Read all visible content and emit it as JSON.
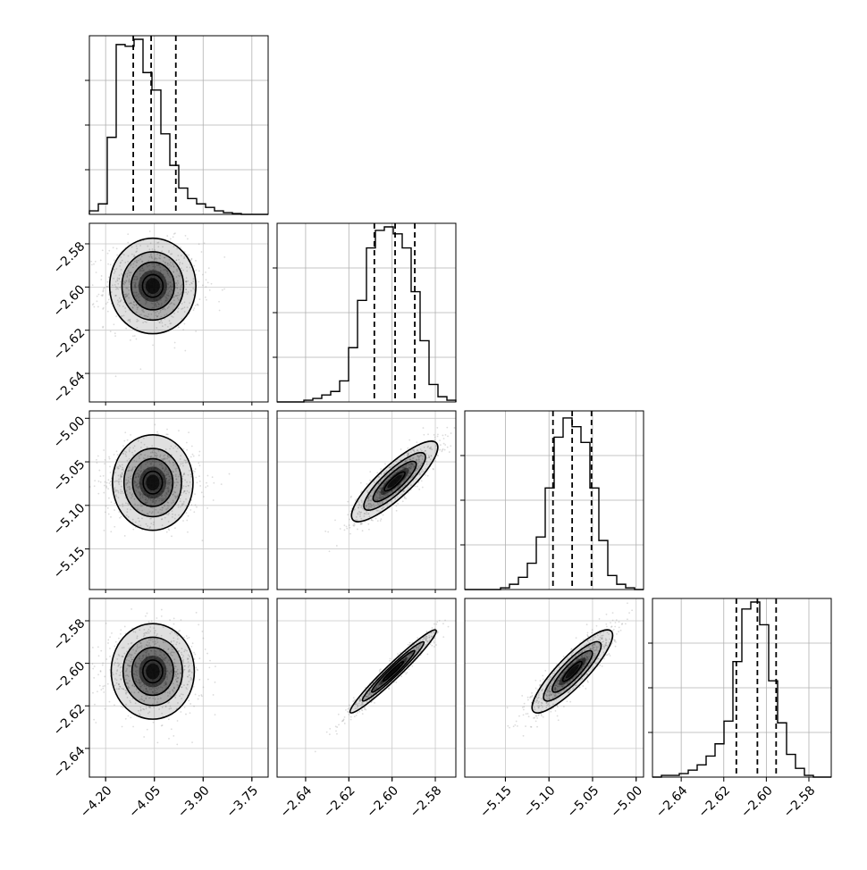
{
  "figure": {
    "type": "corner-plot"
  },
  "tick_labels": {
    "p1": [
      "−4.20",
      "−4.05",
      "−3.90",
      "−3.75"
    ],
    "p2": [
      "−2.64",
      "−2.62",
      "−2.60",
      "−2.58"
    ],
    "p3": [
      "−5.15",
      "−5.10",
      "−5.05",
      "−5.00"
    ],
    "p4": [
      "−2.64",
      "−2.62",
      "−2.60",
      "−2.58"
    ]
  },
  "chart_data": {
    "type": "corner",
    "grid": true,
    "parameters": [
      {
        "tick_values": [
          -4.2,
          -4.05,
          -3.9,
          -3.75
        ],
        "range": [
          -4.25,
          -3.7
        ],
        "quantiles": [
          -4.115,
          -4.06,
          -3.984
        ]
      },
      {
        "tick_values": [
          -2.64,
          -2.62,
          -2.6,
          -2.58
        ],
        "range": [
          -2.6532,
          -2.5705
        ],
        "quantiles": [
          -2.6082,
          -2.5986,
          -2.5895
        ]
      },
      {
        "tick_values": [
          -5.15,
          -5.1,
          -5.05,
          -5.0
        ],
        "range": [
          -5.1966,
          -4.9915
        ],
        "quantiles": [
          -5.0954,
          -5.0734,
          -5.0512
        ]
      },
      {
        "tick_values": [
          -2.64,
          -2.62,
          -2.6,
          -2.58
        ],
        "range": [
          -2.6535,
          -2.5695
        ],
        "quantiles": [
          -2.6141,
          -2.6042,
          -2.5954
        ]
      }
    ],
    "histograms": [
      [
        0.02,
        0.06,
        0.44,
        0.97,
        0.96,
        1.0,
        0.81,
        0.71,
        0.46,
        0.28,
        0.15,
        0.09,
        0.06,
        0.04,
        0.02,
        0.01,
        0.005,
        0.0,
        0.0,
        0.0
      ],
      [
        0.0,
        0.0,
        0.0,
        0.01,
        0.02,
        0.04,
        0.06,
        0.12,
        0.31,
        0.58,
        0.88,
        0.98,
        1.0,
        0.96,
        0.88,
        0.63,
        0.35,
        0.1,
        0.03,
        0.01
      ],
      [
        0.0,
        0.0,
        0.0,
        0.0,
        0.01,
        0.03,
        0.07,
        0.15,
        0.3,
        0.58,
        0.87,
        0.98,
        0.93,
        0.84,
        0.58,
        0.28,
        0.08,
        0.03,
        0.01,
        0.0
      ],
      [
        0.0,
        0.01,
        0.01,
        0.02,
        0.04,
        0.07,
        0.12,
        0.19,
        0.32,
        0.66,
        0.96,
        1.0,
        0.87,
        0.55,
        0.31,
        0.13,
        0.05,
        0.01,
        0.0,
        0.0
      ]
    ],
    "pairs": [
      {
        "x": 0,
        "y": 1,
        "mean": [
          -4.055,
          -2.5995
        ],
        "sd": [
          0.07,
          0.0095
        ],
        "rho": 0.0
      },
      {
        "x": 0,
        "y": 2,
        "mean": [
          -4.055,
          -5.0738
        ],
        "sd": [
          0.07,
          0.022
        ],
        "rho": 0.0
      },
      {
        "x": 1,
        "y": 2,
        "mean": [
          -2.5988,
          -5.0725
        ],
        "sd": [
          0.0095,
          0.022
        ],
        "rho": 0.85
      },
      {
        "x": 0,
        "y": 3,
        "mean": [
          -4.055,
          -2.6038
        ],
        "sd": [
          0.07,
          0.0093
        ],
        "rho": 0.0
      },
      {
        "x": 1,
        "y": 3,
        "mean": [
          -2.5995,
          -2.6038
        ],
        "sd": [
          0.0095,
          0.0093
        ],
        "rho": 0.97
      },
      {
        "x": 2,
        "y": 3,
        "mean": [
          -5.0732,
          -2.6038
        ],
        "sd": [
          0.022,
          0.0093
        ],
        "rho": 0.87
      }
    ]
  }
}
